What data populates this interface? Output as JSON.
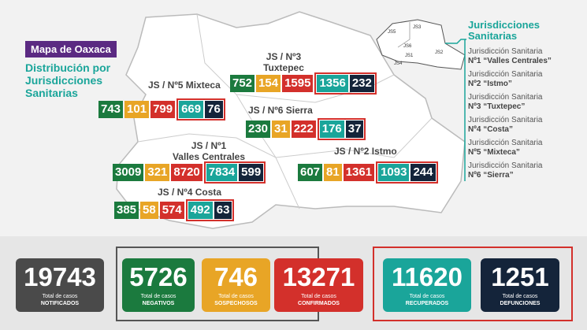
{
  "header": {
    "badge": "Mapa de Oaxaca",
    "subtitle": "Distribución por Jurisdicciones Sanitarias"
  },
  "regions": [
    {
      "title": [
        "JS / Nº5 Mixteca"
      ],
      "values": [
        743,
        101,
        799,
        669,
        76
      ]
    },
    {
      "title": [
        "JS / Nº3",
        "Tuxtepec"
      ],
      "values": [
        752,
        154,
        1595,
        1356,
        232
      ]
    },
    {
      "title": [
        "JS / Nº6 Sierra"
      ],
      "values": [
        230,
        31,
        222,
        176,
        37
      ]
    },
    {
      "title": [
        "JS / Nº1",
        "Valles Centrales"
      ],
      "values": [
        3009,
        321,
        8720,
        7834,
        599
      ]
    },
    {
      "title": [
        "JS / Nº2 Istmo"
      ],
      "values": [
        607,
        81,
        1361,
        1093,
        244
      ]
    },
    {
      "title": [
        "JS / Nº4 Costa"
      ],
      "values": [
        385,
        58,
        574,
        492,
        63
      ]
    }
  ],
  "legend": {
    "title": "Jurisdicciones Sanitarias",
    "map_labels": [
      "JS5",
      "JS3",
      "JS6",
      "JS1",
      "JS4",
      "JS2"
    ],
    "items": [
      {
        "line1": "Jurisdicción Sanitaria",
        "line2": "Nº1 “Valles Centrales”"
      },
      {
        "line1": "Jurisdicción Sanitaria",
        "line2": "Nº2 “Istmo”"
      },
      {
        "line1": "Jurisdicción Sanitaria",
        "line2": "Nº3 “Tuxtepec”"
      },
      {
        "line1": "Jurisdicción Sanitaria",
        "line2": "Nº4 “Costa”"
      },
      {
        "line1": "Jurisdicción Sanitaria",
        "line2": "Nº5 “Mixteca”"
      },
      {
        "line1": "Jurisdicción Sanitaria",
        "line2": "Nº6 “Sierra”"
      }
    ]
  },
  "totals": [
    {
      "value": 19743,
      "caption": "Total de casos",
      "label": "NOTIFICADOS"
    },
    {
      "value": 5726,
      "caption": "Total de casos",
      "label": "NEGATIVOS"
    },
    {
      "value": 746,
      "caption": "Total de casos",
      "label": "SOSPECHOSOS"
    },
    {
      "value": 13271,
      "caption": "Total de casos",
      "label": "CONFIRMADOS"
    },
    {
      "value": 11620,
      "caption": "Total de casos",
      "label": "RECUPERADOS"
    },
    {
      "value": 1251,
      "caption": "Total de casos",
      "label": "DEFUNCIONES"
    }
  ]
}
